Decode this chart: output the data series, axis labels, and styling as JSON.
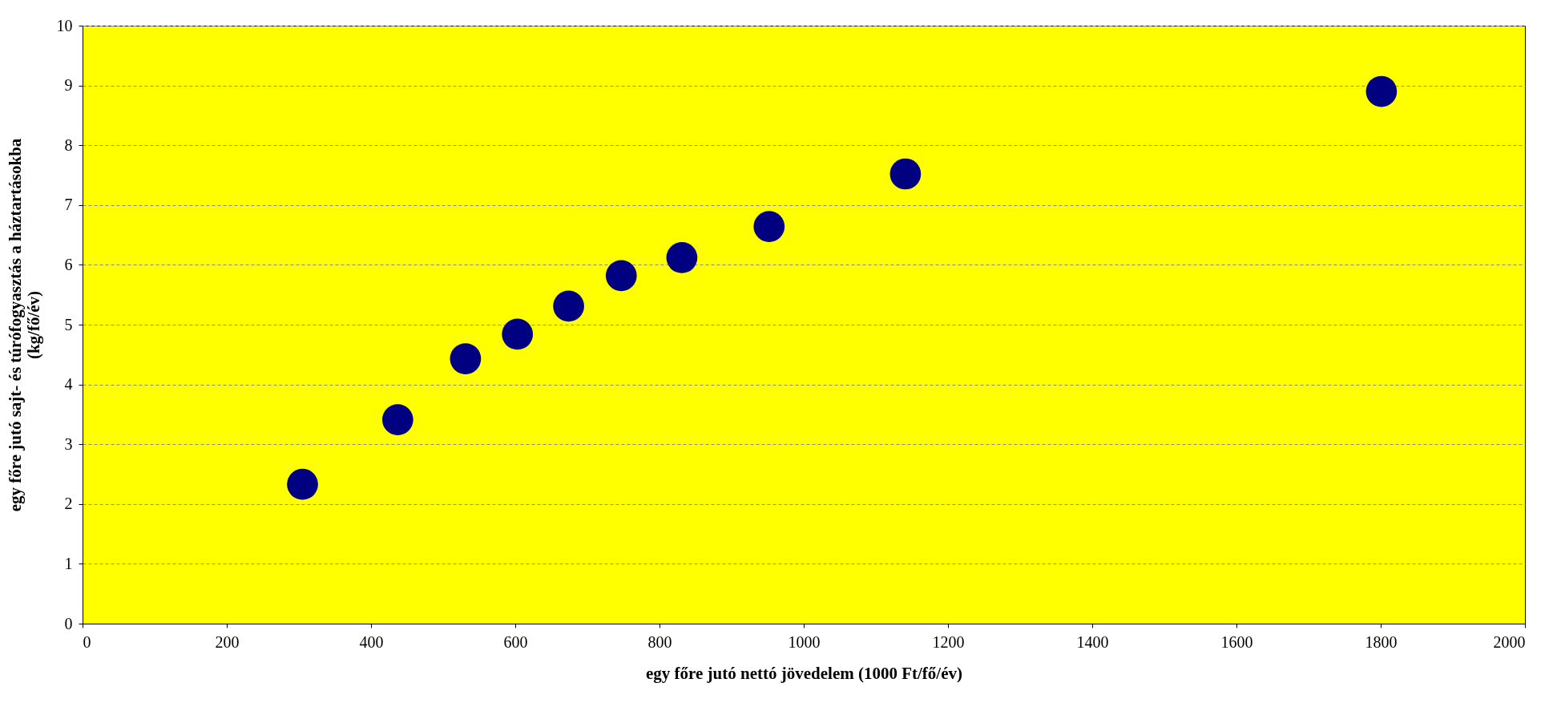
{
  "chart_data": {
    "type": "scatter",
    "xlabel": "egy főre jutó nettó jövedelem (1000 Ft/fő/év)",
    "ylabel": "egy főre jutó sajt- és túrófogyasztás a háztartásokba\n(kg/fő/év)",
    "x": [
      305,
      437,
      531,
      603,
      674,
      747,
      831,
      952,
      1141,
      1801
    ],
    "series": [
      {
        "color": "#000080",
        "values": [
          2.33,
          3.41,
          4.43,
          4.84,
          5.31,
          5.82,
          6.12,
          6.64,
          7.52,
          8.9
        ]
      }
    ],
    "xlim": [
      0,
      2000
    ],
    "xticks": [
      0,
      200,
      400,
      600,
      800,
      1000,
      1200,
      1400,
      1600,
      1800,
      2000
    ],
    "ylim": [
      0,
      10
    ],
    "yticks": [
      0,
      1,
      2,
      3,
      4,
      5,
      6,
      7,
      8,
      9,
      10
    ],
    "grid": "y",
    "marker": "circle"
  }
}
